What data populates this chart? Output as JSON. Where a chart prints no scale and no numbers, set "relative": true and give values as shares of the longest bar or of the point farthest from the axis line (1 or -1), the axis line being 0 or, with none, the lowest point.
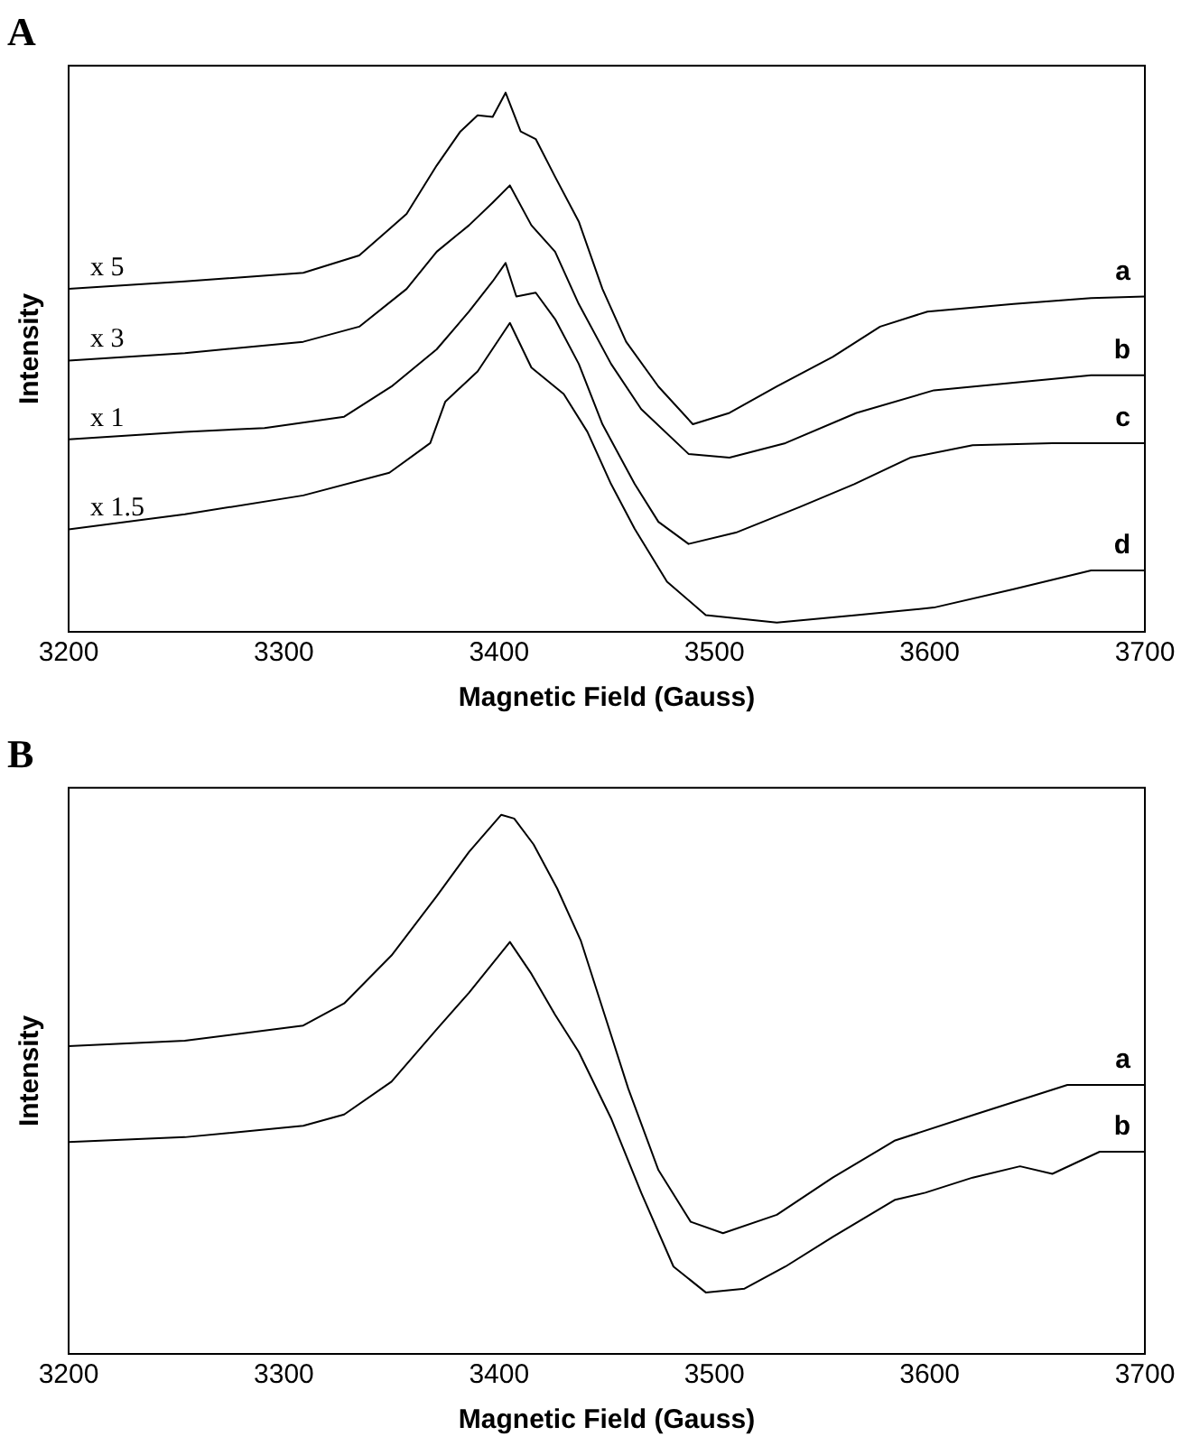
{
  "chart_data": [
    {
      "type": "line",
      "title": "A",
      "xlabel": "Magnetic Field (Gauss)",
      "ylabel": "Intensity",
      "relative": true,
      "xlim": [
        3200,
        3700
      ],
      "xticks": [
        3200,
        3300,
        3400,
        3500,
        3600,
        3700
      ],
      "legend": false,
      "grid": false,
      "marker": "none",
      "line_style": "solid",
      "annotations": [
        "x 5",
        "x 3",
        "x 1",
        "x 1.5"
      ],
      "series": [
        {
          "name": "a",
          "color": "#000000",
          "x": [
            3200,
            3254,
            3309,
            3335,
            3357,
            3371,
            3382,
            3390,
            3397,
            3403,
            3410,
            3417,
            3426,
            3437,
            3448,
            3459,
            3474,
            3490,
            3507,
            3529,
            3555,
            3577,
            3599,
            3639,
            3675,
            3700
          ],
          "values": [
            0.636,
            0.65,
            0.666,
            0.698,
            0.775,
            0.865,
            0.928,
            0.958,
            0.955,
            1,
            0.928,
            0.914,
            0.844,
            0.761,
            0.636,
            0.538,
            0.455,
            0.385,
            0.406,
            0.455,
            0.51,
            0.566,
            0.594,
            0.608,
            0.619,
            0.622
          ]
        },
        {
          "name": "b",
          "color": "#000000",
          "x": [
            3200,
            3254,
            3309,
            3335,
            3357,
            3371,
            3386,
            3397,
            3405,
            3415,
            3426,
            3437,
            3452,
            3466,
            3488,
            3507,
            3533,
            3566,
            3602,
            3639,
            3675,
            3700
          ],
          "values": [
            0.503,
            0.517,
            0.538,
            0.566,
            0.636,
            0.705,
            0.754,
            0.796,
            0.828,
            0.754,
            0.705,
            0.608,
            0.497,
            0.413,
            0.33,
            0.323,
            0.35,
            0.406,
            0.448,
            0.462,
            0.476,
            0.476
          ]
        },
        {
          "name": "c",
          "color": "#000000",
          "x": [
            3200,
            3254,
            3291,
            3328,
            3350,
            3371,
            3386,
            3397,
            3403,
            3408,
            3417,
            3426,
            3437,
            3448,
            3463,
            3474,
            3488,
            3510,
            3540,
            3565,
            3591,
            3620,
            3657,
            3700
          ],
          "values": [
            0.357,
            0.371,
            0.378,
            0.399,
            0.455,
            0.524,
            0.594,
            0.65,
            0.684,
            0.622,
            0.629,
            0.58,
            0.497,
            0.385,
            0.274,
            0.204,
            0.163,
            0.184,
            0.232,
            0.274,
            0.323,
            0.346,
            0.35,
            0.35
          ]
        },
        {
          "name": "d",
          "color": "#000000",
          "x": [
            3200,
            3254,
            3309,
            3349,
            3368,
            3375,
            3390,
            3405,
            3415,
            3430,
            3441,
            3452,
            3463,
            3478,
            3496,
            3529,
            3566,
            3602,
            3639,
            3675,
            3700
          ],
          "values": [
            0.19,
            0.218,
            0.253,
            0.295,
            0.35,
            0.427,
            0.483,
            0.573,
            0.49,
            0.441,
            0.371,
            0.274,
            0.191,
            0.093,
            0.031,
            0.017,
            0.031,
            0.045,
            0.079,
            0.114,
            0.114
          ]
        }
      ]
    },
    {
      "type": "line",
      "title": "B",
      "xlabel": "Magnetic Field (Gauss)",
      "ylabel": "Intensity",
      "relative": true,
      "xlim": [
        3200,
        3700
      ],
      "xticks": [
        3200,
        3300,
        3400,
        3500,
        3600,
        3700
      ],
      "legend": false,
      "grid": false,
      "marker": "none",
      "line_style": "solid",
      "series": [
        {
          "name": "a",
          "color": "#000000",
          "x": [
            3200,
            3254,
            3309,
            3328,
            3350,
            3371,
            3386,
            3401,
            3407,
            3416,
            3427,
            3438,
            3449,
            3460,
            3474,
            3489,
            3504,
            3529,
            3555,
            3584,
            3621,
            3664,
            3700
          ],
          "values": [
            0.571,
            0.581,
            0.609,
            0.65,
            0.739,
            0.849,
            0.931,
            1,
            0.993,
            0.945,
            0.863,
            0.766,
            0.629,
            0.492,
            0.341,
            0.245,
            0.224,
            0.258,
            0.327,
            0.396,
            0.444,
            0.499,
            0.499
          ]
        },
        {
          "name": "b",
          "color": "#000000",
          "x": [
            3200,
            3254,
            3309,
            3328,
            3350,
            3371,
            3386,
            3405,
            3415,
            3426,
            3437,
            3452,
            3466,
            3481,
            3496,
            3514,
            3533,
            3555,
            3584,
            3598,
            3620,
            3642,
            3657,
            3679,
            3700
          ],
          "values": [
            0.393,
            0.402,
            0.423,
            0.444,
            0.505,
            0.602,
            0.67,
            0.764,
            0.705,
            0.629,
            0.56,
            0.437,
            0.299,
            0.162,
            0.114,
            0.121,
            0.162,
            0.217,
            0.286,
            0.299,
            0.327,
            0.348,
            0.334,
            0.375,
            0.375
          ]
        }
      ]
    }
  ]
}
